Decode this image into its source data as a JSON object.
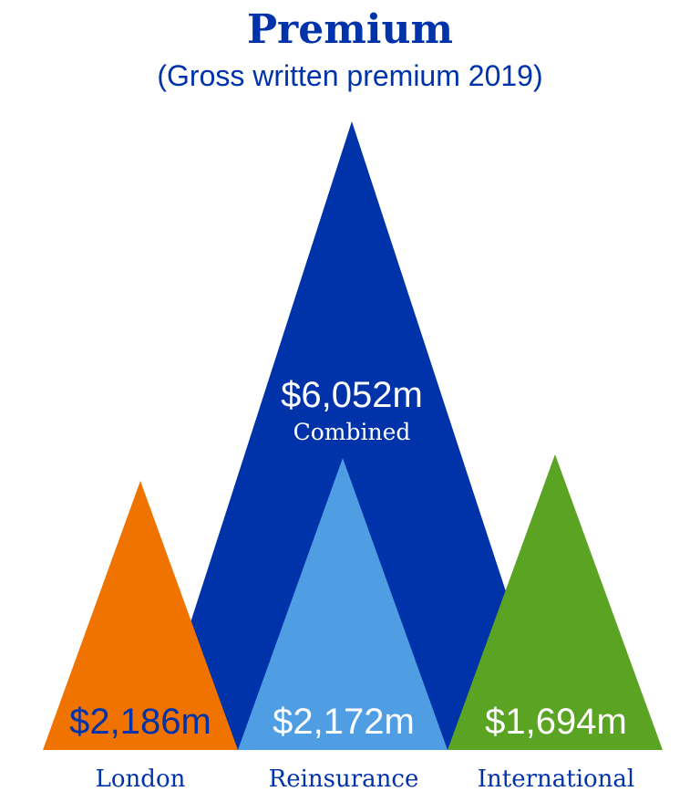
{
  "chart_data": {
    "type": "area",
    "title": "Premium",
    "subtitle": "(Gross written premium 2019)",
    "unit": "$m",
    "combined": {
      "label": "Combined",
      "display": "$6,052m",
      "value": 6052,
      "color": "#0033aa"
    },
    "segments": [
      {
        "category": "London",
        "display": "$2,186m",
        "value": 2186,
        "color": "#f07300",
        "label_color": "#0033aa"
      },
      {
        "category": "Reinsurance",
        "display": "$2,172m",
        "value": 2172,
        "color": "#4f9de3",
        "label_color": "#ffffff"
      },
      {
        "category": "International",
        "display": "$1,694m",
        "value": 1694,
        "color": "#5ba323",
        "label_color": "#ffffff"
      }
    ],
    "text_color": "#0033aa"
  }
}
